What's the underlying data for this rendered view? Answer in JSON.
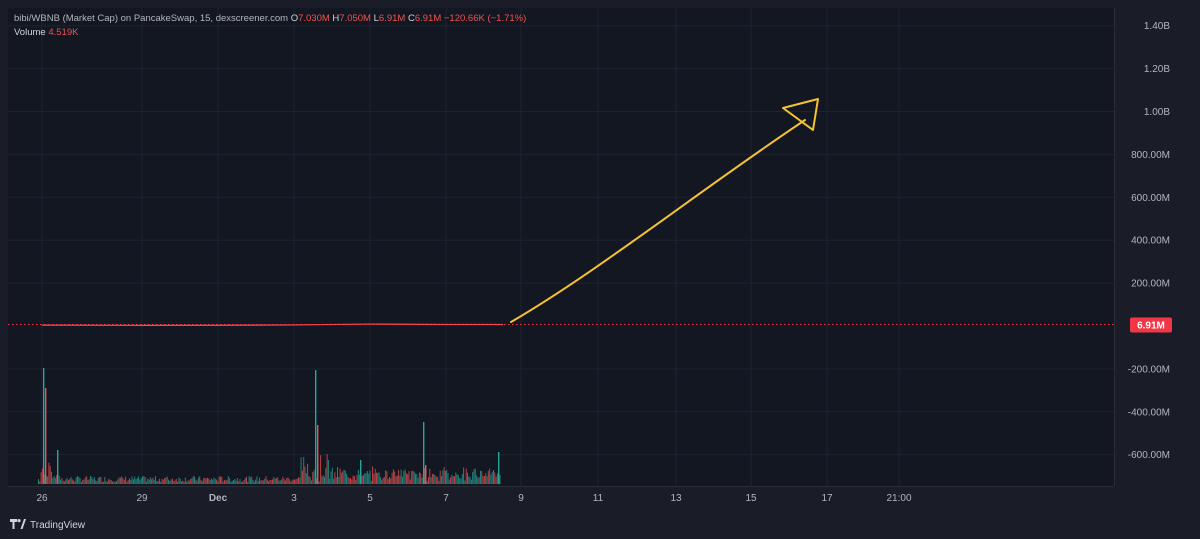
{
  "header": {
    "symbol": "bibi/WBNB (Market Cap) on PancakeSwap, 15, dexscreener.com",
    "o_label": "O",
    "o_value": "7.030M",
    "h_label": "H",
    "h_value": "7.050M",
    "l_label": "L",
    "l_value": "6.91M",
    "c_label": "C",
    "c_value": "6.91M",
    "change": "−120.66K (−1.71%)",
    "volume_label": "Volume",
    "volume_value": "4.519K"
  },
  "branding": {
    "label": "TradingView",
    "icon": "tradingview-logo-icon"
  },
  "colors": {
    "up": "#26a69a",
    "down": "#ef5350",
    "arrow": "#f5c231",
    "last_price": "#f23645"
  },
  "chart_data": {
    "type": "line",
    "title": "",
    "x_ticks": [
      "26",
      "29",
      "Dec",
      "3",
      "5",
      "7",
      "9",
      "11",
      "13",
      "15",
      "17",
      "21:00"
    ],
    "y_ticks": [
      "1.40B",
      "1.20B",
      "1.00B",
      "800.00M",
      "600.00M",
      "400.00M",
      "200.00M",
      "-200.00M",
      "-400.00M",
      "-600.00M"
    ],
    "y_tick_values": [
      1400,
      1200,
      1000,
      800,
      600,
      400,
      200,
      -200,
      -400,
      -600
    ],
    "y_unit": "M",
    "last_price_label": "6.91M",
    "last_price_value": 6.91,
    "series": [
      {
        "x": [
          "26",
          "29",
          "Dec",
          "3",
          "5",
          "7",
          "8.5"
        ],
        "values": [
          4,
          3,
          3.5,
          5,
          9,
          7,
          6.91
        ]
      }
    ],
    "annotation": "hand-drawn upward arrow from ~6.91M around Dec 8.5 toward ~1.00B around Dec 16.5",
    "volume_peaks": [
      {
        "x": "26",
        "value": "tall"
      },
      {
        "x": "3",
        "value": "tall"
      },
      {
        "x": "6.5",
        "value": "medium"
      },
      {
        "x": "8.4",
        "value": "small"
      }
    ]
  }
}
